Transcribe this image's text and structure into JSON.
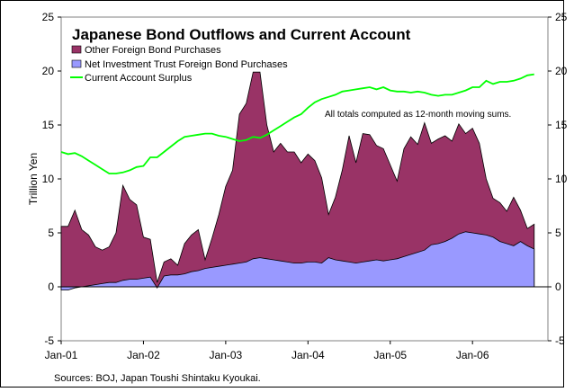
{
  "chart_data": {
    "type": "area",
    "title": "Japanese Bond Outflows and Current Account",
    "ylabel": "Trillion Yen",
    "xlabel": "",
    "ylim": [
      -5,
      25
    ],
    "yticks": [
      -5,
      0,
      5,
      10,
      15,
      20,
      25
    ],
    "ytick_labels": [
      "-5",
      "0",
      "5",
      "10",
      "15",
      "20",
      "25"
    ],
    "xlim": [
      "2001-01",
      "2006-12"
    ],
    "xticks": [
      "2001-01",
      "2002-01",
      "2003-01",
      "2004-01",
      "2005-01",
      "2006-01"
    ],
    "xtick_labels": [
      "Jan-01",
      "Jan-02",
      "Jan-03",
      "Jan-04",
      "Jan-05",
      "Jan-06"
    ],
    "grid": false,
    "legend_position": "top-left",
    "annotation": "All totals computed as 12-month moving sums.",
    "source": "Sources: BOJ, Japan Toushi Shintaku Kyoukai.",
    "colors": {
      "total_fill": "#993366",
      "trust_fill": "#9999ff",
      "current_account": "#00ff00",
      "outline": "#000000"
    },
    "series": [
      {
        "name": "Other Foreign Bond Purchases",
        "kind": "stacked-area-top",
        "values": [
          5.6,
          5.6,
          7.1,
          5.3,
          4.8,
          3.7,
          3.4,
          3.7,
          5.0,
          9.4,
          8.1,
          7.6,
          4.6,
          4.4,
          0.4,
          2.3,
          2.6,
          2.0,
          4.0,
          4.8,
          5.3,
          2.5,
          4.5,
          6.7,
          9.3,
          10.8,
          16.0,
          17.0,
          19.9,
          19.9,
          15.0,
          12.5,
          13.3,
          12.5,
          12.5,
          11.5,
          12.3,
          11.7,
          10.1,
          6.7,
          8.3,
          10.8,
          14.0,
          11.5,
          14.2,
          14.1,
          13.1,
          12.8,
          11.3,
          9.8,
          12.8,
          13.9,
          13.2,
          15.2,
          13.3,
          13.7,
          14.0,
          13.5,
          15.1,
          14.2,
          14.7,
          13.3,
          10.0,
          8.2,
          7.8,
          7.0,
          8.3,
          7.1,
          5.4,
          5.8
        ]
      },
      {
        "name": "Net Investment Trust Foreign Bond Purchases",
        "kind": "area",
        "values": [
          -0.3,
          -0.3,
          -0.1,
          0.0,
          0.1,
          0.2,
          0.3,
          0.4,
          0.4,
          0.6,
          0.7,
          0.7,
          0.8,
          0.9,
          -0.1,
          1.0,
          1.1,
          1.1,
          1.2,
          1.4,
          1.5,
          1.7,
          1.8,
          1.9,
          2.0,
          2.1,
          2.2,
          2.3,
          2.6,
          2.7,
          2.6,
          2.5,
          2.4,
          2.3,
          2.2,
          2.2,
          2.3,
          2.3,
          2.2,
          2.7,
          2.5,
          2.4,
          2.3,
          2.2,
          2.3,
          2.4,
          2.5,
          2.4,
          2.5,
          2.6,
          2.8,
          3.0,
          3.2,
          3.4,
          3.9,
          4.0,
          4.2,
          4.5,
          4.9,
          5.1,
          5.0,
          4.9,
          4.8,
          4.6,
          4.2,
          4.0,
          3.8,
          4.2,
          3.8,
          3.5
        ]
      },
      {
        "name": "Current Account Surplus",
        "kind": "line",
        "values": [
          12.5,
          12.3,
          12.4,
          12.1,
          11.7,
          11.3,
          10.9,
          10.5,
          10.5,
          10.6,
          10.8,
          11.1,
          11.2,
          12.0,
          12.0,
          12.5,
          13.0,
          13.5,
          13.9,
          14.0,
          14.1,
          14.2,
          14.2,
          14.0,
          13.9,
          13.7,
          13.5,
          13.6,
          13.9,
          13.8,
          14.1,
          14.5,
          14.9,
          15.3,
          15.7,
          16.0,
          16.6,
          17.1,
          17.4,
          17.6,
          17.8,
          18.1,
          18.2,
          18.3,
          18.4,
          18.5,
          18.3,
          18.5,
          18.2,
          18.1,
          18.1,
          18.0,
          18.1,
          18.0,
          17.8,
          17.7,
          17.8,
          17.8,
          18.0,
          18.2,
          18.5,
          18.5,
          19.1,
          18.8,
          19.0,
          19.0,
          19.1,
          19.3,
          19.6,
          19.7
        ]
      }
    ]
  }
}
